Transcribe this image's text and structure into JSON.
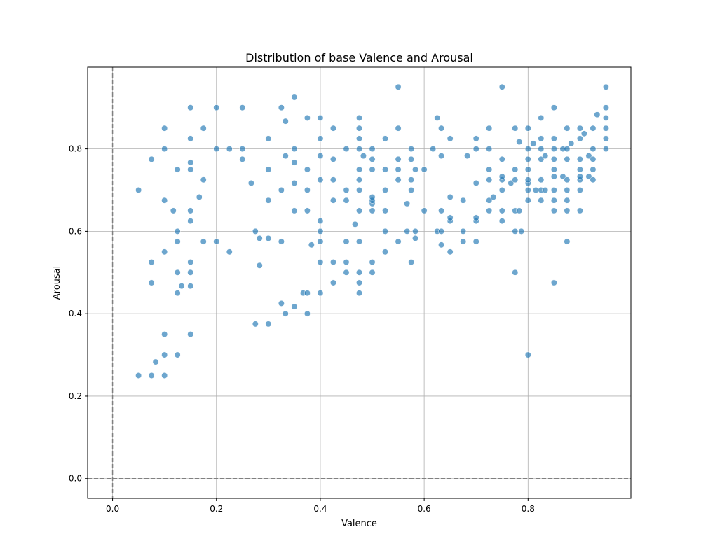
{
  "chart_data": {
    "type": "scatter",
    "title": "Distribution of base Valence and Arousal",
    "xlabel": "Valence",
    "ylabel": "Arousal",
    "xlim": [
      -0.048,
      0.998
    ],
    "ylim": [
      -0.048,
      0.998
    ],
    "xticks": [
      0.0,
      0.2,
      0.4,
      0.6,
      0.8
    ],
    "yticks": [
      0.0,
      0.2,
      0.4,
      0.6,
      0.8
    ],
    "xtick_labels": [
      "0.0",
      "0.2",
      "0.4",
      "0.6",
      "0.8"
    ],
    "ytick_labels": [
      "0.0",
      "0.2",
      "0.4",
      "0.6",
      "0.8"
    ],
    "grid": true,
    "reference_lines": {
      "x": 0,
      "y": 0,
      "style": "dashed",
      "color": "#808080"
    },
    "point_color": "#1f77b4",
    "point_opacity": 0.65,
    "points": [
      [
        0.05,
        0.25
      ],
      [
        0.05,
        0.7
      ],
      [
        0.075,
        0.25
      ],
      [
        0.075,
        0.475
      ],
      [
        0.075,
        0.525
      ],
      [
        0.075,
        0.775
      ],
      [
        0.083,
        0.283
      ],
      [
        0.1,
        0.25
      ],
      [
        0.1,
        0.3
      ],
      [
        0.1,
        0.35
      ],
      [
        0.1,
        0.55
      ],
      [
        0.1,
        0.675
      ],
      [
        0.1,
        0.8
      ],
      [
        0.1,
        0.85
      ],
      [
        0.117,
        0.65
      ],
      [
        0.125,
        0.3
      ],
      [
        0.125,
        0.45
      ],
      [
        0.125,
        0.5
      ],
      [
        0.125,
        0.575
      ],
      [
        0.125,
        0.6
      ],
      [
        0.125,
        0.75
      ],
      [
        0.133,
        0.467
      ],
      [
        0.15,
        0.35
      ],
      [
        0.15,
        0.467
      ],
      [
        0.15,
        0.5
      ],
      [
        0.15,
        0.525
      ],
      [
        0.15,
        0.625
      ],
      [
        0.15,
        0.65
      ],
      [
        0.15,
        0.75
      ],
      [
        0.15,
        0.767
      ],
      [
        0.15,
        0.825
      ],
      [
        0.15,
        0.9
      ],
      [
        0.167,
        0.683
      ],
      [
        0.175,
        0.575
      ],
      [
        0.175,
        0.725
      ],
      [
        0.175,
        0.85
      ],
      [
        0.2,
        0.575
      ],
      [
        0.2,
        0.8
      ],
      [
        0.2,
        0.9
      ],
      [
        0.225,
        0.55
      ],
      [
        0.225,
        0.8
      ],
      [
        0.25,
        0.775
      ],
      [
        0.25,
        0.8
      ],
      [
        0.25,
        0.9
      ],
      [
        0.267,
        0.717
      ],
      [
        0.275,
        0.375
      ],
      [
        0.275,
        0.6
      ],
      [
        0.283,
        0.517
      ],
      [
        0.283,
        0.583
      ],
      [
        0.3,
        0.375
      ],
      [
        0.3,
        0.583
      ],
      [
        0.3,
        0.675
      ],
      [
        0.3,
        0.75
      ],
      [
        0.3,
        0.825
      ],
      [
        0.325,
        0.425
      ],
      [
        0.325,
        0.575
      ],
      [
        0.325,
        0.7
      ],
      [
        0.325,
        0.9
      ],
      [
        0.333,
        0.4
      ],
      [
        0.333,
        0.783
      ],
      [
        0.333,
        0.867
      ],
      [
        0.35,
        0.417
      ],
      [
        0.35,
        0.65
      ],
      [
        0.35,
        0.717
      ],
      [
        0.35,
        0.767
      ],
      [
        0.35,
        0.8
      ],
      [
        0.35,
        0.925
      ],
      [
        0.367,
        0.45
      ],
      [
        0.375,
        0.4
      ],
      [
        0.375,
        0.45
      ],
      [
        0.375,
        0.65
      ],
      [
        0.375,
        0.7
      ],
      [
        0.375,
        0.75
      ],
      [
        0.375,
        0.875
      ],
      [
        0.383,
        0.567
      ],
      [
        0.4,
        0.45
      ],
      [
        0.4,
        0.525
      ],
      [
        0.4,
        0.575
      ],
      [
        0.4,
        0.6
      ],
      [
        0.4,
        0.625
      ],
      [
        0.4,
        0.725
      ],
      [
        0.4,
        0.783
      ],
      [
        0.4,
        0.825
      ],
      [
        0.4,
        0.875
      ],
      [
        0.425,
        0.475
      ],
      [
        0.425,
        0.525
      ],
      [
        0.425,
        0.675
      ],
      [
        0.425,
        0.725
      ],
      [
        0.425,
        0.775
      ],
      [
        0.425,
        0.85
      ],
      [
        0.45,
        0.5
      ],
      [
        0.45,
        0.525
      ],
      [
        0.45,
        0.575
      ],
      [
        0.45,
        0.675
      ],
      [
        0.45,
        0.7
      ],
      [
        0.45,
        0.8
      ],
      [
        0.467,
        0.617
      ],
      [
        0.475,
        0.45
      ],
      [
        0.475,
        0.475
      ],
      [
        0.475,
        0.5
      ],
      [
        0.475,
        0.575
      ],
      [
        0.475,
        0.65
      ],
      [
        0.475,
        0.7
      ],
      [
        0.475,
        0.725
      ],
      [
        0.475,
        0.75
      ],
      [
        0.475,
        0.8
      ],
      [
        0.475,
        0.825
      ],
      [
        0.475,
        0.85
      ],
      [
        0.475,
        0.875
      ],
      [
        0.483,
        0.783
      ],
      [
        0.5,
        0.5
      ],
      [
        0.5,
        0.525
      ],
      [
        0.5,
        0.65
      ],
      [
        0.5,
        0.667
      ],
      [
        0.5,
        0.675
      ],
      [
        0.5,
        0.683
      ],
      [
        0.5,
        0.75
      ],
      [
        0.5,
        0.775
      ],
      [
        0.5,
        0.8
      ],
      [
        0.525,
        0.55
      ],
      [
        0.525,
        0.6
      ],
      [
        0.525,
        0.65
      ],
      [
        0.525,
        0.7
      ],
      [
        0.525,
        0.75
      ],
      [
        0.525,
        0.825
      ],
      [
        0.55,
        0.575
      ],
      [
        0.55,
        0.725
      ],
      [
        0.55,
        0.75
      ],
      [
        0.55,
        0.775
      ],
      [
        0.55,
        0.85
      ],
      [
        0.55,
        0.95
      ],
      [
        0.567,
        0.6
      ],
      [
        0.567,
        0.667
      ],
      [
        0.575,
        0.525
      ],
      [
        0.575,
        0.7
      ],
      [
        0.575,
        0.725
      ],
      [
        0.575,
        0.775
      ],
      [
        0.575,
        0.8
      ],
      [
        0.583,
        0.583
      ],
      [
        0.583,
        0.6
      ],
      [
        0.583,
        0.75
      ],
      [
        0.6,
        0.65
      ],
      [
        0.6,
        0.75
      ],
      [
        0.617,
        0.8
      ],
      [
        0.625,
        0.6
      ],
      [
        0.625,
        0.875
      ],
      [
        0.633,
        0.567
      ],
      [
        0.633,
        0.6
      ],
      [
        0.633,
        0.65
      ],
      [
        0.633,
        0.783
      ],
      [
        0.633,
        0.85
      ],
      [
        0.65,
        0.55
      ],
      [
        0.65,
        0.625
      ],
      [
        0.65,
        0.633
      ],
      [
        0.65,
        0.683
      ],
      [
        0.65,
        0.825
      ],
      [
        0.675,
        0.575
      ],
      [
        0.675,
        0.6
      ],
      [
        0.675,
        0.675
      ],
      [
        0.683,
        0.783
      ],
      [
        0.7,
        0.575
      ],
      [
        0.7,
        0.625
      ],
      [
        0.7,
        0.633
      ],
      [
        0.7,
        0.717
      ],
      [
        0.7,
        0.8
      ],
      [
        0.7,
        0.825
      ],
      [
        0.725,
        0.65
      ],
      [
        0.725,
        0.675
      ],
      [
        0.725,
        0.725
      ],
      [
        0.725,
        0.75
      ],
      [
        0.725,
        0.8
      ],
      [
        0.725,
        0.85
      ],
      [
        0.733,
        0.683
      ],
      [
        0.75,
        0.625
      ],
      [
        0.75,
        0.65
      ],
      [
        0.75,
        0.7
      ],
      [
        0.75,
        0.725
      ],
      [
        0.75,
        0.733
      ],
      [
        0.75,
        0.775
      ],
      [
        0.75,
        0.95
      ],
      [
        0.767,
        0.717
      ],
      [
        0.775,
        0.5
      ],
      [
        0.775,
        0.6
      ],
      [
        0.775,
        0.65
      ],
      [
        0.775,
        0.725
      ],
      [
        0.775,
        0.75
      ],
      [
        0.775,
        0.85
      ],
      [
        0.783,
        0.65
      ],
      [
        0.783,
        0.817
      ],
      [
        0.787,
        0.6
      ],
      [
        0.8,
        0.3
      ],
      [
        0.8,
        0.675
      ],
      [
        0.8,
        0.7
      ],
      [
        0.8,
        0.717
      ],
      [
        0.8,
        0.725
      ],
      [
        0.8,
        0.75
      ],
      [
        0.8,
        0.775
      ],
      [
        0.8,
        0.8
      ],
      [
        0.8,
        0.85
      ],
      [
        0.81,
        0.813
      ],
      [
        0.815,
        0.7
      ],
      [
        0.825,
        0.675
      ],
      [
        0.825,
        0.7
      ],
      [
        0.825,
        0.725
      ],
      [
        0.825,
        0.775
      ],
      [
        0.825,
        0.8
      ],
      [
        0.825,
        0.825
      ],
      [
        0.825,
        0.875
      ],
      [
        0.833,
        0.7
      ],
      [
        0.833,
        0.783
      ],
      [
        0.85,
        0.475
      ],
      [
        0.85,
        0.65
      ],
      [
        0.85,
        0.675
      ],
      [
        0.85,
        0.7
      ],
      [
        0.85,
        0.733
      ],
      [
        0.85,
        0.75
      ],
      [
        0.85,
        0.775
      ],
      [
        0.85,
        0.8
      ],
      [
        0.85,
        0.825
      ],
      [
        0.85,
        0.9
      ],
      [
        0.867,
        0.733
      ],
      [
        0.867,
        0.8
      ],
      [
        0.875,
        0.575
      ],
      [
        0.875,
        0.65
      ],
      [
        0.875,
        0.675
      ],
      [
        0.875,
        0.7
      ],
      [
        0.875,
        0.725
      ],
      [
        0.875,
        0.775
      ],
      [
        0.875,
        0.8
      ],
      [
        0.875,
        0.85
      ],
      [
        0.883,
        0.813
      ],
      [
        0.9,
        0.65
      ],
      [
        0.9,
        0.7
      ],
      [
        0.9,
        0.725
      ],
      [
        0.9,
        0.733
      ],
      [
        0.9,
        0.75
      ],
      [
        0.9,
        0.775
      ],
      [
        0.9,
        0.825
      ],
      [
        0.9,
        0.85
      ],
      [
        0.908,
        0.837
      ],
      [
        0.917,
        0.733
      ],
      [
        0.917,
        0.783
      ],
      [
        0.925,
        0.725
      ],
      [
        0.925,
        0.75
      ],
      [
        0.925,
        0.775
      ],
      [
        0.925,
        0.8
      ],
      [
        0.925,
        0.85
      ],
      [
        0.933,
        0.883
      ],
      [
        0.95,
        0.8
      ],
      [
        0.95,
        0.825
      ],
      [
        0.95,
        0.85
      ],
      [
        0.95,
        0.875
      ],
      [
        0.95,
        0.9
      ],
      [
        0.95,
        0.95
      ]
    ]
  }
}
